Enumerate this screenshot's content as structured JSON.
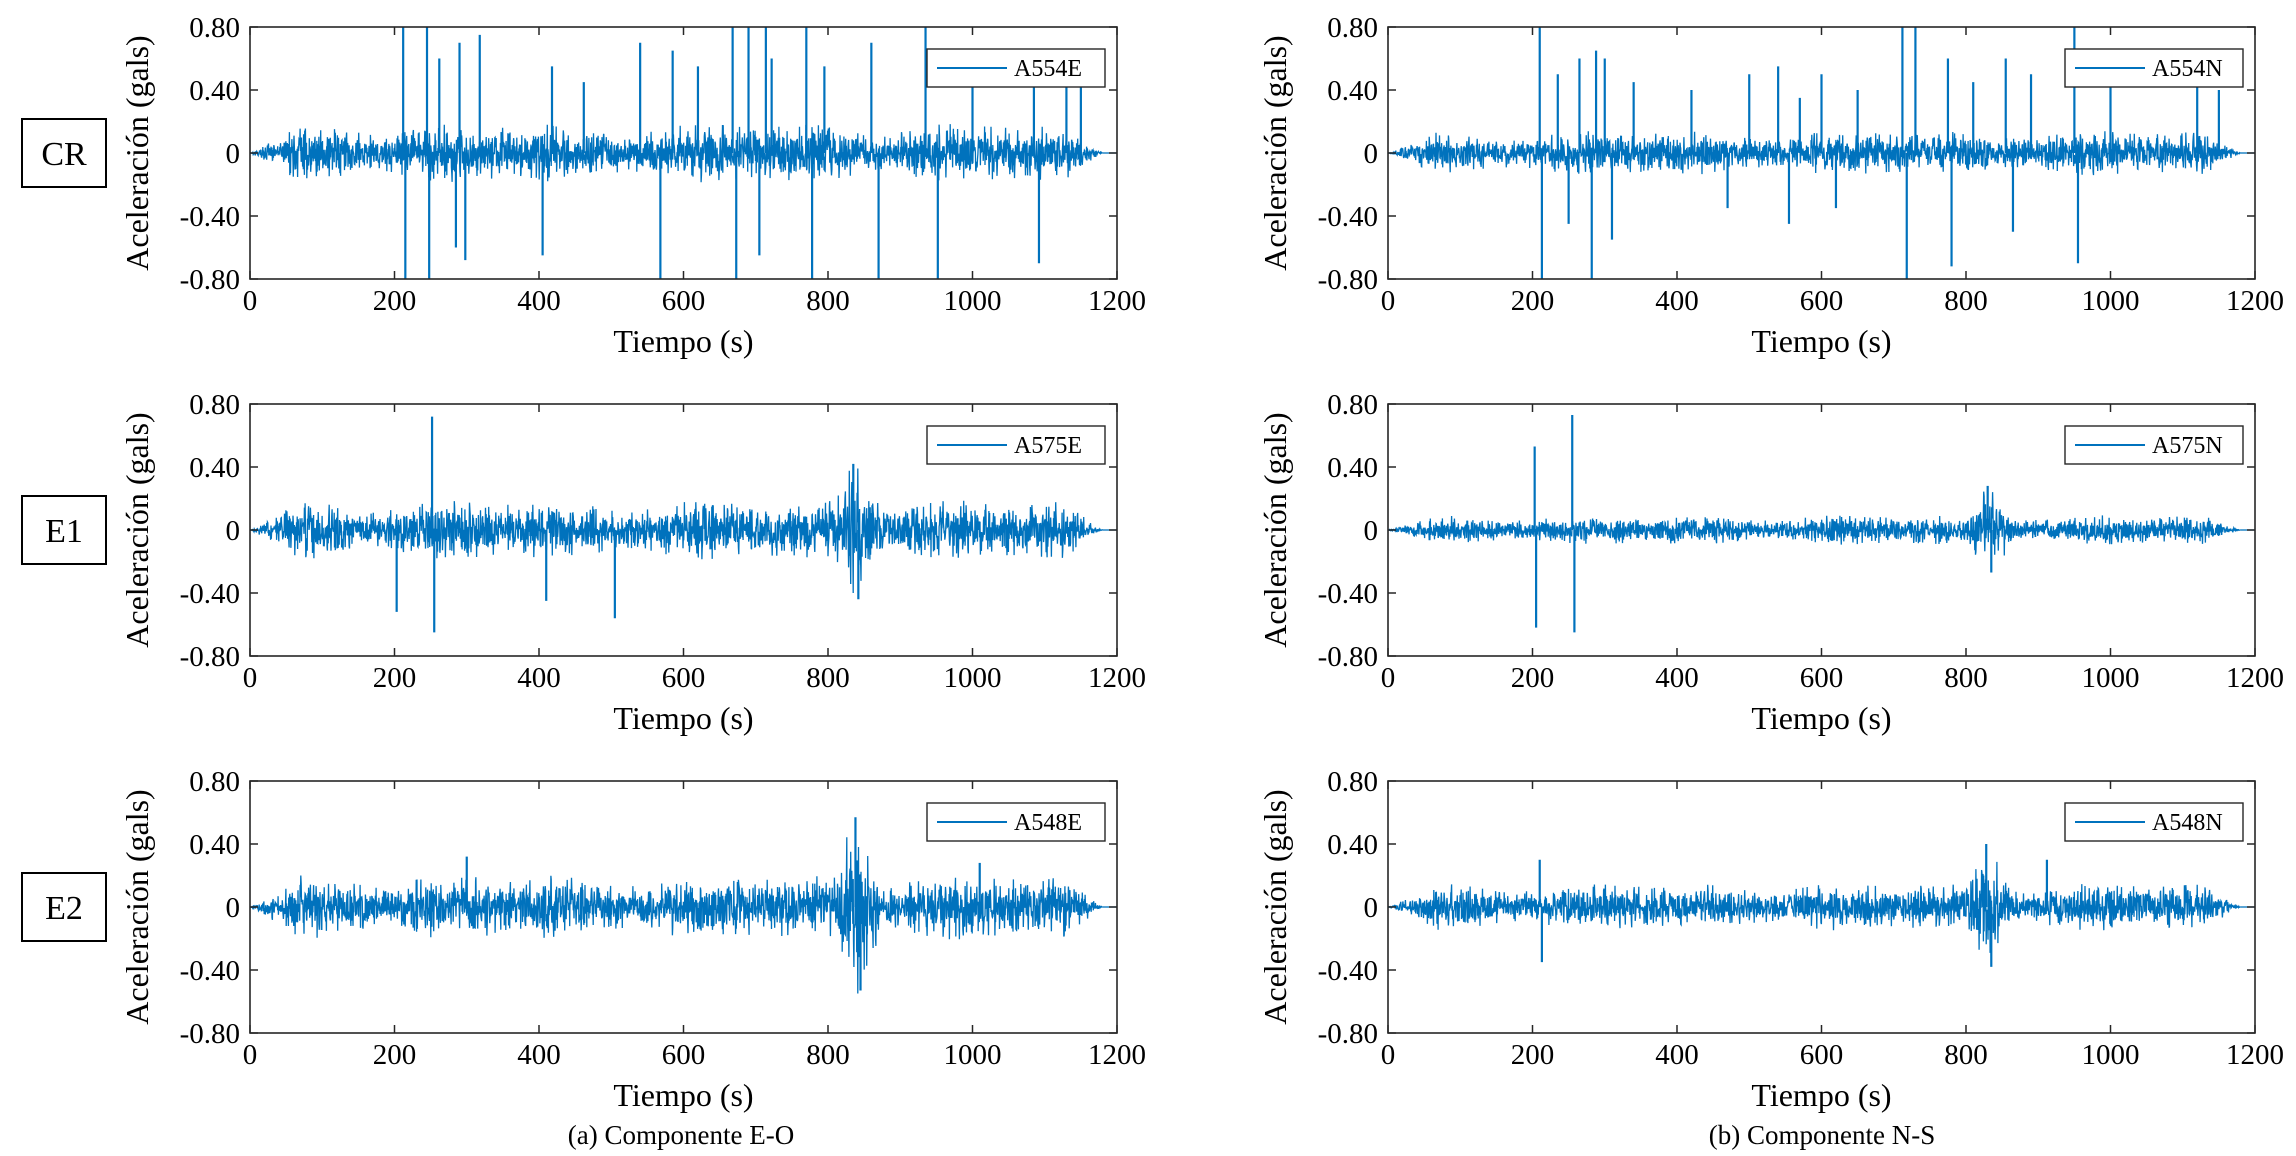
{
  "figure": {
    "row_labels": [
      "CR",
      "E1",
      "E2"
    ],
    "captions": [
      "(a) Componente E-O",
      "(b) Componente N-S"
    ],
    "series_color": "#0072BD"
  },
  "chart_data": [
    {
      "type": "line",
      "id": "cr-eo",
      "row": "CR",
      "column": "E-O",
      "legend": "A554E",
      "xlabel": "Tiempo (s)",
      "ylabel": "Aceleración (gals)",
      "xlim": [
        0,
        1200
      ],
      "ylim": [
        -0.8,
        0.8
      ],
      "xticks": [
        0,
        200,
        400,
        600,
        800,
        1000,
        1200
      ],
      "xtick_labels": [
        "0",
        "200",
        "400",
        "600",
        "800",
        "1000",
        "1200"
      ],
      "yticks": [
        0.8,
        0.4,
        0,
        -0.4,
        -0.8
      ],
      "ytick_labels": [
        "0.80",
        "0.40",
        "0",
        "-0.40",
        "-0.80"
      ],
      "series": [
        {
          "name": "A554E",
          "record_duration": 1180,
          "envelope_amplitude": 0.2,
          "spikes": [
            [
              212,
              0.8
            ],
            [
              215,
              -0.8
            ],
            [
              245,
              0.8
            ],
            [
              248,
              -0.8
            ],
            [
              262,
              0.6
            ],
            [
              285,
              -0.6
            ],
            [
              290,
              0.7
            ],
            [
              298,
              -0.68
            ],
            [
              318,
              0.75
            ],
            [
              405,
              -0.65
            ],
            [
              418,
              0.55
            ],
            [
              462,
              0.45
            ],
            [
              540,
              0.7
            ],
            [
              568,
              -0.8
            ],
            [
              585,
              0.65
            ],
            [
              620,
              0.55
            ],
            [
              668,
              0.8
            ],
            [
              673,
              -0.8
            ],
            [
              690,
              0.8
            ],
            [
              705,
              -0.65
            ],
            [
              714,
              0.8
            ],
            [
              722,
              0.6
            ],
            [
              770,
              0.8
            ],
            [
              778,
              -0.8
            ],
            [
              795,
              0.55
            ],
            [
              860,
              0.7
            ],
            [
              870,
              -0.8
            ],
            [
              935,
              0.8
            ],
            [
              952,
              -0.8
            ],
            [
              1000,
              0.5
            ],
            [
              1085,
              0.6
            ],
            [
              1092,
              -0.7
            ],
            [
              1130,
              0.6
            ],
            [
              1150,
              0.5
            ]
          ]
        }
      ]
    },
    {
      "type": "line",
      "id": "cr-ns",
      "row": "CR",
      "column": "N-S",
      "legend": "A554N",
      "xlabel": "Tiempo (s)",
      "ylabel": "Aceleración (gals)",
      "xlim": [
        0,
        1200
      ],
      "ylim": [
        -0.8,
        0.8
      ],
      "xticks": [
        0,
        200,
        400,
        600,
        800,
        1000,
        1200
      ],
      "xtick_labels": [
        "0",
        "200",
        "400",
        "600",
        "800",
        "1000",
        "1200"
      ],
      "yticks": [
        0.8,
        0.4,
        0,
        -0.4,
        -0.8
      ],
      "ytick_labels": [
        "0.80",
        "0.40",
        "0",
        "-0.40",
        "-0.80"
      ],
      "series": [
        {
          "name": "A554N",
          "record_duration": 1180,
          "envelope_amplitude": 0.15,
          "spikes": [
            [
              210,
              0.8
            ],
            [
              213,
              -0.8
            ],
            [
              235,
              0.5
            ],
            [
              250,
              -0.45
            ],
            [
              265,
              0.6
            ],
            [
              282,
              -0.8
            ],
            [
              288,
              0.65
            ],
            [
              300,
              0.6
            ],
            [
              310,
              -0.55
            ],
            [
              340,
              0.45
            ],
            [
              420,
              0.4
            ],
            [
              470,
              -0.35
            ],
            [
              500,
              0.5
            ],
            [
              540,
              0.55
            ],
            [
              555,
              -0.45
            ],
            [
              570,
              0.35
            ],
            [
              600,
              0.5
            ],
            [
              620,
              -0.35
            ],
            [
              650,
              0.4
            ],
            [
              712,
              0.8
            ],
            [
              718,
              -0.8
            ],
            [
              730,
              0.8
            ],
            [
              775,
              0.6
            ],
            [
              780,
              -0.72
            ],
            [
              810,
              0.45
            ],
            [
              855,
              0.6
            ],
            [
              865,
              -0.5
            ],
            [
              890,
              0.5
            ],
            [
              950,
              0.8
            ],
            [
              955,
              -0.7
            ],
            [
              1000,
              0.45
            ],
            [
              1120,
              0.5
            ],
            [
              1150,
              0.4
            ]
          ]
        }
      ]
    },
    {
      "type": "line",
      "id": "e1-eo",
      "row": "E1",
      "column": "E-O",
      "legend": "A575E",
      "xlabel": "Tiempo (s)",
      "ylabel": "Aceleración (gals)",
      "xlim": [
        0,
        1200
      ],
      "ylim": [
        -0.8,
        0.8
      ],
      "xticks": [
        0,
        200,
        400,
        600,
        800,
        1000,
        1200
      ],
      "xtick_labels": [
        "0",
        "200",
        "400",
        "600",
        "800",
        "1000",
        "1200"
      ],
      "yticks": [
        0.8,
        0.4,
        0,
        -0.4,
        -0.8
      ],
      "ytick_labels": [
        "0.80",
        "0.40",
        "0",
        "-0.40",
        "-0.80"
      ],
      "series": [
        {
          "name": "A575E",
          "record_duration": 1180,
          "envelope_amplitude": 0.2,
          "burst": {
            "center": 835,
            "width": 40,
            "amplitude": 0.4
          },
          "spikes": [
            [
              203,
              -0.52
            ],
            [
              252,
              0.72
            ],
            [
              255,
              -0.65
            ],
            [
              410,
              -0.45
            ],
            [
              505,
              -0.56
            ],
            [
              835,
              0.42
            ],
            [
              842,
              -0.44
            ]
          ]
        }
      ]
    },
    {
      "type": "line",
      "id": "e1-ns",
      "row": "E1",
      "column": "N-S",
      "legend": "A575N",
      "xlabel": "Tiempo (s)",
      "ylabel": "Aceleración (gals)",
      "xlim": [
        0,
        1200
      ],
      "ylim": [
        -0.8,
        0.8
      ],
      "xticks": [
        0,
        200,
        400,
        600,
        800,
        1000,
        1200
      ],
      "xtick_labels": [
        "0",
        "200",
        "400",
        "600",
        "800",
        "1000",
        "1200"
      ],
      "yticks": [
        0.8,
        0.4,
        0,
        -0.4,
        -0.8
      ],
      "ytick_labels": [
        "0.80",
        "0.40",
        "0",
        "-0.40",
        "-0.80"
      ],
      "series": [
        {
          "name": "A575N",
          "record_duration": 1180,
          "envelope_amplitude": 0.1,
          "burst": {
            "center": 830,
            "width": 35,
            "amplitude": 0.25
          },
          "spikes": [
            [
              203,
              0.53
            ],
            [
              205,
              -0.62
            ],
            [
              255,
              0.73
            ],
            [
              258,
              -0.65
            ],
            [
              830,
              0.28
            ],
            [
              835,
              -0.27
            ]
          ]
        }
      ]
    },
    {
      "type": "line",
      "id": "e2-eo",
      "row": "E2",
      "column": "E-O",
      "legend": "A548E",
      "xlabel": "Tiempo (s)",
      "ylabel": "Aceleración (gals)",
      "xlim": [
        0,
        1200
      ],
      "ylim": [
        -0.8,
        0.8
      ],
      "xticks": [
        0,
        200,
        400,
        600,
        800,
        1000,
        1200
      ],
      "xtick_labels": [
        "0",
        "200",
        "400",
        "600",
        "800",
        "1000",
        "1200"
      ],
      "yticks": [
        0.8,
        0.4,
        0,
        -0.4,
        -0.8
      ],
      "ytick_labels": [
        "0.80",
        "0.40",
        "0",
        "-0.40",
        "-0.80"
      ],
      "series": [
        {
          "name": "A548E",
          "record_duration": 1180,
          "envelope_amplitude": 0.22,
          "burst": {
            "center": 840,
            "width": 30,
            "amplitude": 0.55
          },
          "spikes": [
            [
              300,
              0.32
            ],
            [
              838,
              0.57
            ],
            [
              845,
              -0.53
            ],
            [
              1010,
              0.28
            ]
          ]
        }
      ]
    },
    {
      "type": "line",
      "id": "e2-ns",
      "row": "E2",
      "column": "N-S",
      "legend": "A548N",
      "xlabel": "Tiempo (s)",
      "ylabel": "Aceleración (gals)",
      "xlim": [
        0,
        1200
      ],
      "ylim": [
        -0.8,
        0.8
      ],
      "xticks": [
        0,
        200,
        400,
        600,
        800,
        1000,
        1200
      ],
      "xtick_labels": [
        "0",
        "200",
        "400",
        "600",
        "800",
        "1000",
        "1200"
      ],
      "yticks": [
        0.8,
        0.4,
        0,
        -0.4,
        -0.8
      ],
      "ytick_labels": [
        "0.80",
        "0.40",
        "0",
        "-0.40",
        "-0.80"
      ],
      "series": [
        {
          "name": "A548N",
          "record_duration": 1180,
          "envelope_amplitude": 0.16,
          "burst": {
            "center": 830,
            "width": 30,
            "amplitude": 0.38
          },
          "spikes": [
            [
              210,
              0.3
            ],
            [
              213,
              -0.35
            ],
            [
              828,
              0.4
            ],
            [
              835,
              -0.38
            ],
            [
              912,
              0.3
            ]
          ]
        }
      ]
    }
  ]
}
